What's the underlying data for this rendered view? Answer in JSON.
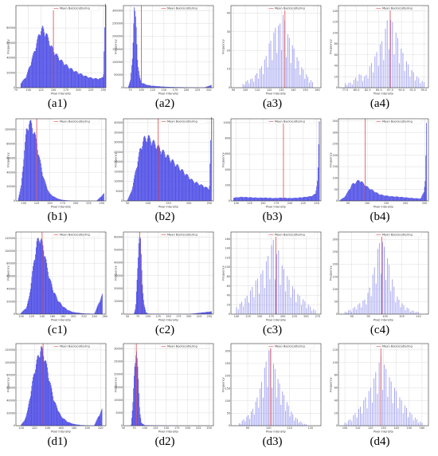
{
  "colors": {
    "bar": "#4a4ae6",
    "bar_light": "#8c8cf0",
    "mean": "#e0474c",
    "grid": "#dcdcdc"
  },
  "legend_label": "Mean Backscattering",
  "xlabel": "Pixel Intensity",
  "ylabel": "Frequency",
  "chart_data": [
    {
      "id": "a1",
      "caption": "(a1)",
      "type": "bar",
      "style": "dense",
      "xticks": [
        "75",
        "100",
        "125",
        "150",
        "175",
        "200",
        "225",
        "250"
      ],
      "xlim": [
        75,
        255
      ],
      "yticks": [
        "0",
        "20000",
        "40000",
        "60000",
        "80000"
      ],
      "ylim": [
        0,
        110000
      ],
      "mean": 150,
      "x": [
        85,
        95,
        105,
        115,
        122,
        128,
        135,
        145,
        155,
        165,
        175,
        185,
        195,
        205,
        215,
        225,
        235,
        245,
        250,
        254
      ],
      "values": [
        6000,
        14000,
        33000,
        55000,
        72000,
        78000,
        72000,
        55000,
        44000,
        36000,
        30000,
        25000,
        21000,
        18000,
        15000,
        13000,
        12000,
        12000,
        16000,
        105000
      ]
    },
    {
      "id": "a2",
      "caption": "(a2)",
      "type": "bar",
      "style": "dense",
      "xticks": [
        "75",
        "100",
        "125",
        "150",
        "175",
        "200",
        "225",
        "250"
      ],
      "xlim": [
        60,
        260
      ],
      "yticks": [
        "0",
        "50000",
        "100000",
        "150000",
        "200000",
        "250000",
        "300000"
      ],
      "ylim": [
        0,
        320000
      ],
      "mean": 100,
      "x": [
        70,
        76,
        80,
        84,
        88,
        92,
        96,
        100,
        110,
        120,
        140,
        160,
        180,
        200,
        220,
        240,
        255
      ],
      "values": [
        0,
        30000,
        120000,
        300000,
        250000,
        90000,
        40000,
        20000,
        12000,
        8000,
        5000,
        3000,
        2000,
        1500,
        1000,
        800,
        10000
      ]
    },
    {
      "id": "a3",
      "caption": "(a3)",
      "type": "bar",
      "style": "sparse",
      "xticks": [
        "90",
        "100",
        "110",
        "120",
        "130",
        "140",
        "150",
        "160"
      ],
      "xlim": [
        88,
        163
      ],
      "yticks": [
        "0",
        "10",
        "20",
        "30",
        "40"
      ],
      "ylim": [
        0,
        44
      ],
      "mean": 133,
      "x": [
        98,
        102,
        106,
        110,
        114,
        116,
        118,
        120,
        122,
        124,
        126,
        128,
        130,
        132,
        134,
        136,
        138,
        140,
        142,
        144,
        146,
        148,
        150,
        152,
        156
      ],
      "values": [
        2,
        4,
        5,
        8,
        12,
        15,
        18,
        24,
        26,
        30,
        34,
        33,
        36,
        40,
        30,
        28,
        24,
        22,
        18,
        15,
        12,
        10,
        8,
        6,
        3
      ]
    },
    {
      "id": "a4",
      "caption": "(a4)",
      "type": "bar",
      "style": "sparse",
      "xticks": [
        "77.5",
        "80.0",
        "82.5",
        "85.0",
        "87.5",
        "90.0",
        "92.5",
        "95.0"
      ],
      "xlim": [
        76,
        96
      ],
      "yticks": [
        "0",
        "20",
        "40",
        "60",
        "80",
        "100",
        "120",
        "140"
      ],
      "ylim": [
        0,
        150
      ],
      "mean": 87.5,
      "x": [
        77.5,
        79.0,
        80.5,
        82.0,
        83.0,
        84.0,
        85.0,
        86.0,
        87.0,
        88.0,
        89.0,
        90.0,
        91.0,
        92.0,
        93.5,
        95.0
      ],
      "values": [
        8,
        10,
        25,
        20,
        40,
        55,
        75,
        90,
        130,
        120,
        95,
        70,
        50,
        35,
        20,
        10
      ]
    },
    {
      "id": "b1",
      "caption": "(b1)",
      "type": "bar",
      "style": "dense",
      "xticks": [
        "100",
        "125",
        "150",
        "175",
        "200",
        "225",
        "250"
      ],
      "xlim": [
        85,
        258
      ],
      "yticks": [
        "0",
        "20000",
        "40000",
        "60000",
        "80000",
        "100000"
      ],
      "ylim": [
        0,
        115000
      ],
      "mean": 125,
      "x": [
        90,
        95,
        100,
        105,
        110,
        115,
        120,
        125,
        130,
        135,
        140,
        145,
        150,
        160,
        170,
        180,
        190,
        200,
        220,
        240,
        254
      ],
      "values": [
        5000,
        20000,
        60000,
        95000,
        108000,
        105000,
        95000,
        80000,
        60000,
        42000,
        28000,
        18000,
        10000,
        5000,
        2000,
        1000,
        500,
        200,
        100,
        100,
        10000
      ]
    },
    {
      "id": "b2",
      "caption": "(b2)",
      "type": "bar",
      "style": "dense",
      "xticks": [
        "50",
        "100",
        "150",
        "200",
        "250"
      ],
      "xlim": [
        40,
        260
      ],
      "yticks": [
        "0",
        "5000",
        "10000",
        "15000",
        "20000",
        "25000",
        "30000",
        "35000",
        "40000"
      ],
      "ylim": [
        0,
        42000
      ],
      "mean": 125,
      "x": [
        50,
        60,
        70,
        80,
        90,
        100,
        110,
        120,
        130,
        140,
        150,
        160,
        170,
        180,
        190,
        200,
        210,
        220,
        230,
        240,
        250,
        255
      ],
      "values": [
        500,
        5000,
        15000,
        25000,
        31000,
        32000,
        30000,
        28000,
        26000,
        24000,
        22000,
        20000,
        18000,
        16000,
        14000,
        12000,
        10000,
        9000,
        8000,
        7000,
        6000,
        40000
      ]
    },
    {
      "id": "b3",
      "caption": "(b3)",
      "type": "bar",
      "style": "dense",
      "xticks": [
        "100",
        "125",
        "150",
        "175",
        "200",
        "225",
        "250"
      ],
      "xlim": [
        90,
        258
      ],
      "yticks": [
        "0",
        "200",
        "400",
        "600",
        "800",
        "1000"
      ],
      "ylim": [
        0,
        1050
      ],
      "mean": 188,
      "x": [
        95,
        110,
        125,
        140,
        155,
        170,
        185,
        200,
        215,
        230,
        240,
        248,
        252,
        255
      ],
      "values": [
        40,
        50,
        45,
        40,
        40,
        35,
        40,
        35,
        40,
        50,
        60,
        90,
        300,
        950
      ]
    },
    {
      "id": "b4",
      "caption": "(b4)",
      "type": "bar",
      "style": "dense",
      "xticks": [
        "50",
        "100",
        "150",
        "200",
        "250"
      ],
      "xlim": [
        25,
        260
      ],
      "yticks": [
        "0",
        "50",
        "100",
        "150",
        "200",
        "250",
        "300",
        "350"
      ],
      "ylim": [
        0,
        360
      ],
      "mean": 95,
      "x": [
        30,
        40,
        50,
        60,
        70,
        80,
        90,
        100,
        110,
        120,
        130,
        140,
        160,
        180,
        200,
        220,
        240,
        248,
        252,
        255
      ],
      "values": [
        5,
        15,
        40,
        70,
        80,
        90,
        75,
        60,
        50,
        40,
        30,
        25,
        20,
        18,
        15,
        12,
        10,
        40,
        90,
        320
      ]
    },
    {
      "id": "c1",
      "caption": "(c1)",
      "type": "bar",
      "style": "dense",
      "xticks": [
        "100",
        "120",
        "140",
        "160",
        "180",
        "200",
        "220",
        "240",
        "260"
      ],
      "xlim": [
        90,
        262
      ],
      "yticks": [
        "0",
        "20000",
        "40000",
        "60000",
        "80000",
        "100000",
        "120000"
      ],
      "ylim": [
        0,
        130000
      ],
      "mean": 140,
      "x": [
        100,
        110,
        115,
        120,
        125,
        130,
        135,
        140,
        145,
        150,
        160,
        170,
        180,
        190,
        200,
        220,
        240,
        255
      ],
      "values": [
        2000,
        10000,
        25000,
        55000,
        85000,
        110000,
        120000,
        110000,
        95000,
        70000,
        40000,
        22000,
        12000,
        6000,
        3000,
        1000,
        500,
        30000
      ]
    },
    {
      "id": "c2",
      "caption": "(c2)",
      "type": "bar",
      "style": "dense",
      "xticks": [
        "50",
        "75",
        "100",
        "125",
        "150",
        "175",
        "200",
        "225",
        "250"
      ],
      "xlim": [
        40,
        260
      ],
      "yticks": [
        "0",
        "10000",
        "20000",
        "30000",
        "40000",
        "50000",
        "60000"
      ],
      "ylim": [
        0,
        64000
      ],
      "mean": 80,
      "x": [
        66,
        70,
        74,
        78,
        82,
        86,
        90,
        95,
        100,
        150,
        200,
        255
      ],
      "values": [
        500,
        5000,
        30000,
        60000,
        55000,
        25000,
        8000,
        1500,
        300,
        100,
        50,
        2000
      ]
    },
    {
      "id": "c3",
      "caption": "(c3)",
      "type": "bar",
      "style": "sparse",
      "xticks": [
        "100",
        "125",
        "150",
        "175",
        "200",
        "225",
        "250",
        "275"
      ],
      "xlim": [
        88,
        282
      ],
      "yticks": [
        "0",
        "20",
        "40",
        "60",
        "80",
        "100",
        "120",
        "140",
        "160"
      ],
      "ylim": [
        0,
        175
      ],
      "mean": 185,
      "x": [
        100,
        110,
        120,
        130,
        140,
        150,
        160,
        170,
        175,
        180,
        185,
        190,
        195,
        200,
        210,
        220,
        230,
        240,
        250,
        260,
        270
      ],
      "values": [
        15,
        25,
        35,
        50,
        70,
        80,
        100,
        130,
        145,
        160,
        120,
        140,
        110,
        100,
        80,
        60,
        45,
        35,
        25,
        15,
        8
      ]
    },
    {
      "id": "c4",
      "caption": "(c4)",
      "type": "bar",
      "style": "sparse",
      "xticks": [
        "90",
        "95",
        "100",
        "105",
        "110"
      ],
      "xlim": [
        86,
        113
      ],
      "yticks": [
        "0",
        "50",
        "100",
        "150",
        "200",
        "250",
        "300"
      ],
      "ylim": [
        0,
        330
      ],
      "mean": 99,
      "x": [
        88,
        90,
        92,
        94,
        95,
        96,
        97,
        98,
        99,
        100,
        101,
        102,
        103,
        104,
        106,
        108,
        110
      ],
      "values": [
        10,
        20,
        40,
        60,
        90,
        140,
        200,
        280,
        300,
        260,
        210,
        150,
        90,
        60,
        30,
        15,
        8
      ]
    },
    {
      "id": "d1",
      "caption": "(d1)",
      "type": "bar",
      "style": "dense",
      "xticks": [
        "100",
        "120",
        "140",
        "160",
        "180",
        "200",
        "220"
      ],
      "xlim": [
        92,
        228
      ],
      "yticks": [
        "0",
        "20000",
        "40000",
        "60000",
        "80000",
        "100000",
        "120000"
      ],
      "ylim": [
        0,
        130000
      ],
      "mean": 133,
      "x": [
        100,
        105,
        110,
        115,
        120,
        125,
        130,
        135,
        140,
        145,
        150,
        160,
        170,
        180,
        190,
        200,
        210,
        222
      ],
      "values": [
        2000,
        8000,
        25000,
        55000,
        85000,
        105000,
        120000,
        108000,
        85000,
        60000,
        38000,
        15000,
        6000,
        2500,
        1000,
        500,
        200,
        25000
      ]
    },
    {
      "id": "d2",
      "caption": "(d2)",
      "type": "bar",
      "style": "dense",
      "xticks": [
        "50",
        "75",
        "100",
        "125",
        "150",
        "175",
        "200",
        "225",
        "250"
      ],
      "xlim": [
        50,
        260
      ],
      "yticks": [
        "0",
        "5000",
        "10000",
        "15000",
        "20000",
        "25000",
        "30000"
      ],
      "ylim": [
        0,
        32000
      ],
      "mean": 80,
      "x": [
        68,
        72,
        76,
        80,
        84,
        88,
        92,
        100,
        150,
        200,
        250
      ],
      "values": [
        500,
        8000,
        22000,
        30000,
        20000,
        6000,
        1000,
        200,
        50,
        30,
        20
      ]
    },
    {
      "id": "d3",
      "caption": "(d3)",
      "type": "bar",
      "style": "sparse",
      "xticks": [
        "90",
        "100",
        "110",
        "120"
      ],
      "xlim": [
        82,
        125
      ],
      "yticks": [
        "0",
        "50",
        "100",
        "150",
        "200",
        "250",
        "300"
      ],
      "ylim": [
        0,
        330
      ],
      "mean": 101,
      "x": [
        86,
        90,
        92,
        94,
        96,
        98,
        100,
        101,
        102,
        104,
        106,
        108,
        110,
        112,
        114,
        116,
        118
      ],
      "values": [
        10,
        40,
        60,
        100,
        150,
        230,
        300,
        310,
        260,
        200,
        150,
        110,
        70,
        40,
        25,
        12,
        5
      ]
    },
    {
      "id": "d4",
      "caption": "(d4)",
      "type": "bar",
      "style": "sparse",
      "xticks": [
        "100",
        "110",
        "120",
        "130",
        "140",
        "150",
        "160"
      ],
      "xlim": [
        95,
        165
      ],
      "yticks": [
        "0",
        "20",
        "40",
        "60",
        "80",
        "100",
        "120"
      ],
      "ylim": [
        0,
        130
      ],
      "mean": 128,
      "x": [
        100,
        104,
        108,
        112,
        116,
        120,
        122,
        124,
        126,
        128,
        130,
        132,
        134,
        136,
        140,
        144,
        148,
        152,
        156,
        160
      ],
      "values": [
        5,
        10,
        20,
        30,
        45,
        60,
        70,
        85,
        95,
        110,
        100,
        90,
        80,
        70,
        55,
        40,
        28,
        18,
        10,
        5
      ]
    }
  ]
}
